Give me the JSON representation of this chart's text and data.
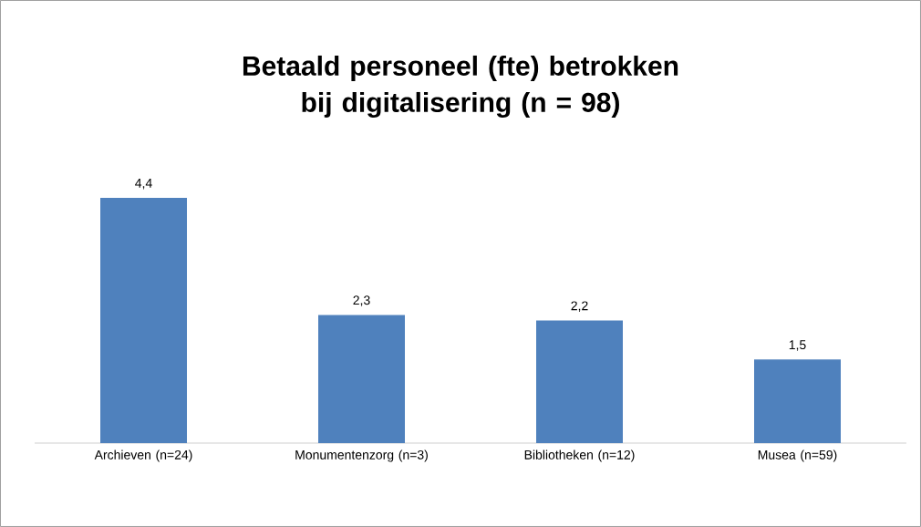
{
  "chart_data": {
    "type": "bar",
    "title": "Betaald personeel  (fte) betrokken bij digitalisering (n = 98)",
    "categories": [
      "Archieven (n=24)",
      "Monumentenzorg (n=3)",
      "Bibliotheken (n=12)",
      "Musea (n=59)"
    ],
    "values": [
      4.4,
      2.3,
      2.2,
      1.5
    ],
    "value_labels": [
      "4,4",
      "2,3",
      "2,2",
      "1,5"
    ],
    "color": "#4f81bd"
  }
}
